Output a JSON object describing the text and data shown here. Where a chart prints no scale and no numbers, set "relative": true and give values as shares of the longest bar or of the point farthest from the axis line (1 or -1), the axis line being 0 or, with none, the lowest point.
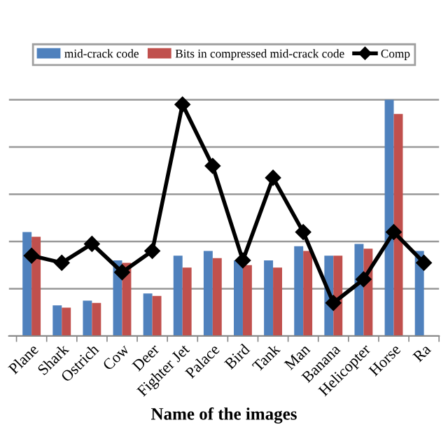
{
  "chart_data": {
    "type": "bar",
    "relative": true,
    "xlabel": "Name of the images",
    "categories": [
      "Plane",
      "Shark",
      "Ostrich",
      "Cow",
      "Deer",
      "Fighter Jet",
      "Palace",
      "Bird",
      "Tank",
      "Man",
      "Banana",
      "Helicopter",
      "Horse",
      "Ra"
    ],
    "series": [
      {
        "name": "mid-crack code",
        "color": "#4f81bd",
        "values": [
          0.44,
          0.13,
          0.15,
          0.32,
          0.18,
          0.34,
          0.36,
          0.32,
          0.32,
          0.38,
          0.34,
          0.39,
          1.0,
          0.36
        ]
      },
      {
        "name": "Bits in compressed mid-crack code",
        "color": "#c0504d",
        "values": [
          0.42,
          0.12,
          0.14,
          0.31,
          0.17,
          0.29,
          0.33,
          0.3,
          0.29,
          0.36,
          0.34,
          0.37,
          0.94,
          null
        ]
      },
      {
        "name": "Comp",
        "type": "line",
        "color": "#000000",
        "marker": "diamond",
        "line_style": "solid",
        "values": [
          0.34,
          0.31,
          0.39,
          0.27,
          0.36,
          0.98,
          0.72,
          0.32,
          0.67,
          0.44,
          0.14,
          0.24,
          0.44,
          0.31
        ]
      }
    ],
    "grid": "y",
    "legend": "top"
  }
}
